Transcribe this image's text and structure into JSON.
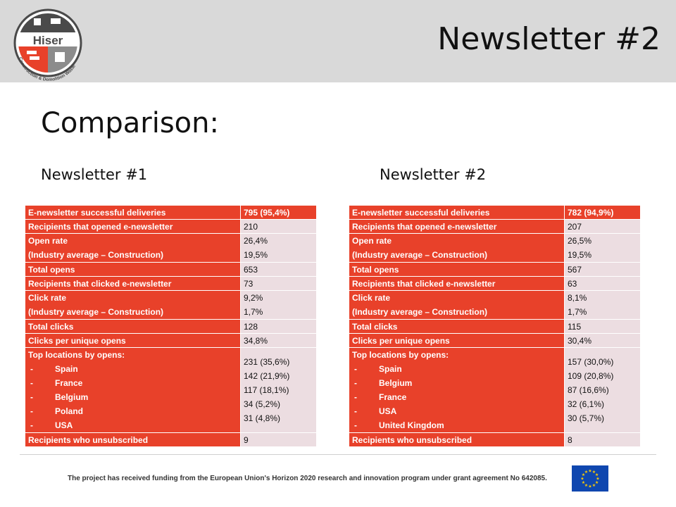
{
  "slide": {
    "title": "Newsletter #2",
    "subtitle": "Comparison:"
  },
  "logo": {
    "text": "Hiser",
    "tagline": "Construction & Demolition Waste"
  },
  "columns": [
    {
      "heading": "Newsletter #1",
      "rows": [
        {
          "label": "E-newsletter successful deliveries",
          "value": "795  (95,4%)"
        },
        {
          "label": "Recipients that opened e-newsletter",
          "value": "210"
        },
        {
          "label": "Open rate",
          "label2": "(Industry average – Construction)",
          "value": "26,4%",
          "value2": "19,5%"
        },
        {
          "label": "Total opens",
          "value": "653"
        },
        {
          "label": "Recipients that clicked e-newsletter",
          "value": "73"
        },
        {
          "label": "Click rate",
          "label2": "(Industry average – Construction)",
          "value": "9,2%",
          "value2": "1,7%"
        },
        {
          "label": "Total clicks",
          "value": "128"
        },
        {
          "label": "Clicks per unique opens",
          "value": "34,8%"
        },
        {
          "label": "Top locations by opens:",
          "locations": [
            {
              "name": "Spain",
              "value": "231  (35,6%)"
            },
            {
              "name": "France",
              "value": "142  (21,9%)"
            },
            {
              "name": "Belgium",
              "value": "117  (18,1%)"
            },
            {
              "name": "Poland",
              "value": "34  (5,2%)"
            },
            {
              "name": "USA",
              "value": "31  (4,8%)"
            }
          ]
        },
        {
          "label": "Recipients who unsubscribed",
          "value": "9"
        }
      ]
    },
    {
      "heading": "Newsletter #2",
      "rows": [
        {
          "label": "E-newsletter successful deliveries",
          "value": "782  (94,9%)"
        },
        {
          "label": "Recipients that opened e-newsletter",
          "value": "207"
        },
        {
          "label": "Open rate",
          "label2": "(Industry average – Construction)",
          "value": "26,5%",
          "value2": "19,5%"
        },
        {
          "label": "Total opens",
          "value": "567"
        },
        {
          "label": "Recipients that clicked e-newsletter",
          "value": "63"
        },
        {
          "label": "Click rate",
          "label2": "(Industry average – Construction)",
          "value": "8,1%",
          "value2": "1,7%"
        },
        {
          "label": "Total clicks",
          "value": "115"
        },
        {
          "label": "Clicks per unique opens",
          "value": "30,4%"
        },
        {
          "label": "Top locations by opens:",
          "locations": [
            {
              "name": "Spain",
              "value": "157  (30,0%)"
            },
            {
              "name": "Belgium",
              "value": "109  (20,8%)"
            },
            {
              "name": "France",
              "value": "87  (16,6%)"
            },
            {
              "name": "USA",
              "value": "32  (6,1%)"
            },
            {
              "name": "United Kingdom",
              "value": "30  (5,7%)"
            }
          ]
        },
        {
          "label": "Recipients who unsubscribed",
          "value": "8"
        }
      ]
    }
  ],
  "footer": {
    "text": "The project has received funding from the European Union's Horizon 2020 research and innovation program under grant agreement No 642085."
  },
  "colors": {
    "accent_red": "#e8412a",
    "value_cell": "#ecdde1",
    "header_band": "#d9d9d9",
    "eu_blue": "#0f47af",
    "eu_star": "#ffcc00"
  },
  "icons": {
    "logo": "hiser-logo-icon",
    "eu_flag": "eu-flag-icon"
  }
}
